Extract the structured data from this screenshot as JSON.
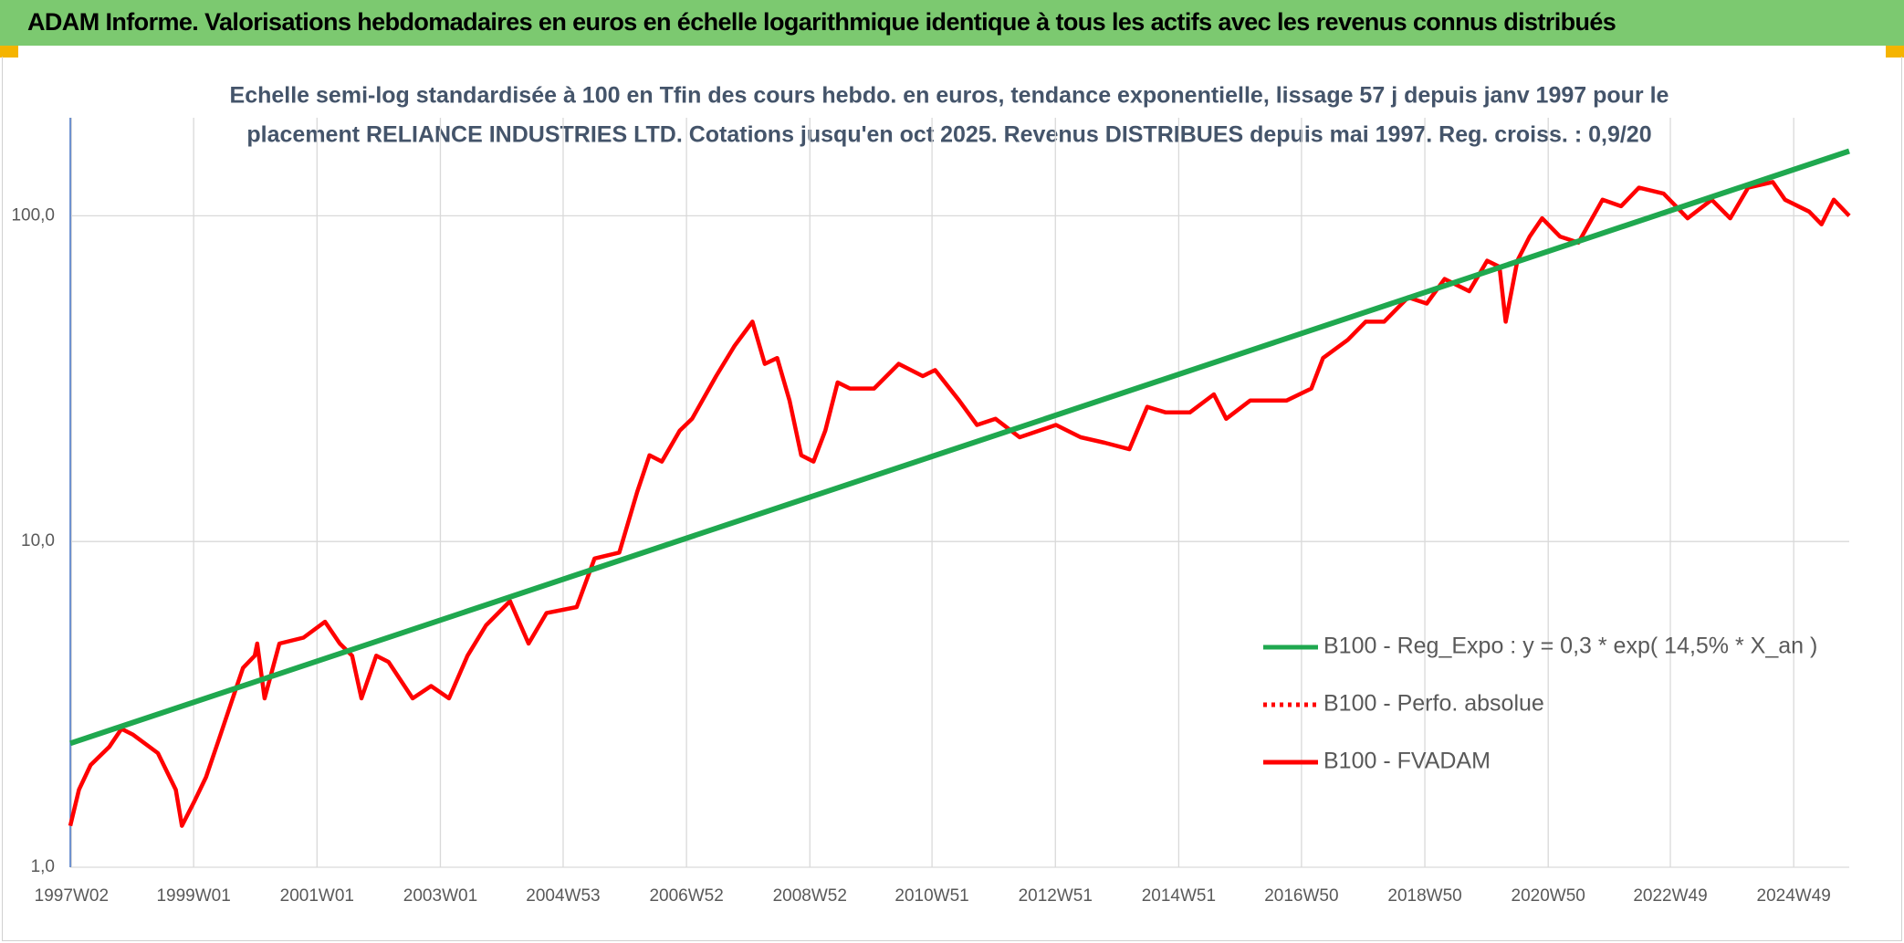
{
  "header": {
    "title": "ADAM Informe. Valorisations hebdomadaires en euros en échelle logarithmique identique à tous les actifs avec les revenus connus distribués"
  },
  "chart_data": {
    "type": "line",
    "subtitle": [
      "Echelle semi-log standardisée à 100 en Tfin des cours hebdo. en euros, tendance exponentielle, lissage 57 j depuis janv 1997 pour le",
      "placement RELIANCE INDUSTRIES LTD. Cotations jusqu'en oct 2025. Revenus DISTRIBUES depuis mai 1997. Reg. croiss. : 0,9/20"
    ],
    "xlim": [
      1997.0,
      2025.84
    ],
    "xticks": [
      {
        "value": 1997.02,
        "label": "1997W02"
      },
      {
        "value": 1999.0,
        "label": "1999W01"
      },
      {
        "value": 2001.0,
        "label": "2001W01"
      },
      {
        "value": 2003.0,
        "label": "2003W01"
      },
      {
        "value": 2004.99,
        "label": "2004W53"
      },
      {
        "value": 2006.99,
        "label": "2006W52"
      },
      {
        "value": 2008.99,
        "label": "2008W52"
      },
      {
        "value": 2010.97,
        "label": "2010W51"
      },
      {
        "value": 2012.97,
        "label": "2012W51"
      },
      {
        "value": 2014.97,
        "label": "2014W51"
      },
      {
        "value": 2016.96,
        "label": "2016W50"
      },
      {
        "value": 2018.96,
        "label": "2018W50"
      },
      {
        "value": 2020.96,
        "label": "2020W50"
      },
      {
        "value": 2022.94,
        "label": "2022W49"
      },
      {
        "value": 2024.94,
        "label": "2024W49"
      }
    ],
    "ylim": [
      1,
      200
    ],
    "yticks": [
      {
        "value": 1,
        "label": "1,0"
      },
      {
        "value": 10,
        "label": "10,0"
      },
      {
        "value": 100,
        "label": "100,0"
      }
    ],
    "log_y": true,
    "grid": true,
    "legend": "right",
    "series": [
      {
        "name": "B100 - Reg_Expo : y = 0,3 * exp( 14,5% *  X_an )",
        "color": "#1fa84f",
        "line_style": "solid",
        "x": [
          1997.0,
          2025.84
        ],
        "values": [
          2.4,
          158
        ]
      },
      {
        "name": "B100 - Perfo. absolue",
        "color": "#ff0000",
        "line_style": "dotted",
        "x": [],
        "values": []
      },
      {
        "name": "B100 - FVADAM",
        "color": "#ff0000",
        "line_style": "solid",
        "x": [
          1997.0,
          1997.14,
          1997.33,
          1997.63,
          1997.83,
          1998.02,
          1998.42,
          1998.71,
          1998.81,
          1999.01,
          1999.2,
          1999.4,
          1999.6,
          1999.8,
          1999.99,
          2000.03,
          2000.15,
          2000.39,
          2000.78,
          2001.13,
          2001.37,
          2001.57,
          2001.72,
          2001.96,
          2002.16,
          2002.55,
          2002.85,
          2003.14,
          2003.44,
          2003.74,
          2004.13,
          2004.43,
          2004.72,
          2005.21,
          2005.5,
          2005.9,
          2006.19,
          2006.39,
          2006.59,
          2006.88,
          2007.08,
          2007.47,
          2007.77,
          2008.06,
          2008.26,
          2008.46,
          2008.66,
          2008.85,
          2009.05,
          2009.24,
          2009.44,
          2009.64,
          2010.03,
          2010.43,
          2010.82,
          2011.02,
          2011.41,
          2011.7,
          2012.0,
          2012.39,
          2012.98,
          2013.38,
          2013.77,
          2014.17,
          2014.46,
          2014.76,
          2015.15,
          2015.54,
          2015.74,
          2016.13,
          2016.72,
          2017.12,
          2017.31,
          2017.71,
          2018.0,
          2018.3,
          2018.69,
          2018.99,
          2019.28,
          2019.68,
          2019.97,
          2020.17,
          2020.27,
          2020.46,
          2020.66,
          2020.86,
          2021.15,
          2021.45,
          2021.84,
          2022.14,
          2022.43,
          2022.83,
          2023.22,
          2023.61,
          2023.91,
          2024.2,
          2024.6,
          2024.8,
          2025.19,
          2025.39,
          2025.59,
          2025.84
        ],
        "values": [
          1.34,
          1.73,
          2.06,
          2.34,
          2.66,
          2.55,
          2.24,
          1.73,
          1.34,
          1.59,
          1.89,
          2.44,
          3.16,
          4.09,
          4.46,
          4.86,
          3.3,
          4.86,
          5.07,
          5.67,
          4.86,
          4.46,
          3.3,
          4.46,
          4.27,
          3.3,
          3.6,
          3.3,
          4.46,
          5.53,
          6.56,
          4.86,
          6.03,
          6.29,
          8.87,
          9.25,
          14.2,
          18.4,
          17.6,
          21.9,
          23.8,
          32.2,
          39.9,
          47.3,
          35.1,
          36.6,
          27.1,
          18.4,
          17.6,
          21.9,
          30.8,
          29.5,
          29.5,
          35.1,
          32.2,
          33.6,
          27.1,
          22.8,
          23.8,
          20.9,
          22.8,
          20.9,
          20.1,
          19.2,
          25.9,
          24.9,
          24.9,
          28.3,
          23.8,
          27.1,
          27.1,
          29.5,
          36.6,
          41.6,
          47.3,
          47.3,
          56.2,
          53.8,
          64.0,
          58.7,
          72.8,
          69.7,
          47.3,
          72.8,
          86.4,
          98.3,
          86.4,
          82.7,
          112,
          107,
          122,
          117,
          98.3,
          112,
          98.3,
          122,
          127,
          112,
          103,
          94.2,
          112,
          100
        ]
      }
    ]
  }
}
